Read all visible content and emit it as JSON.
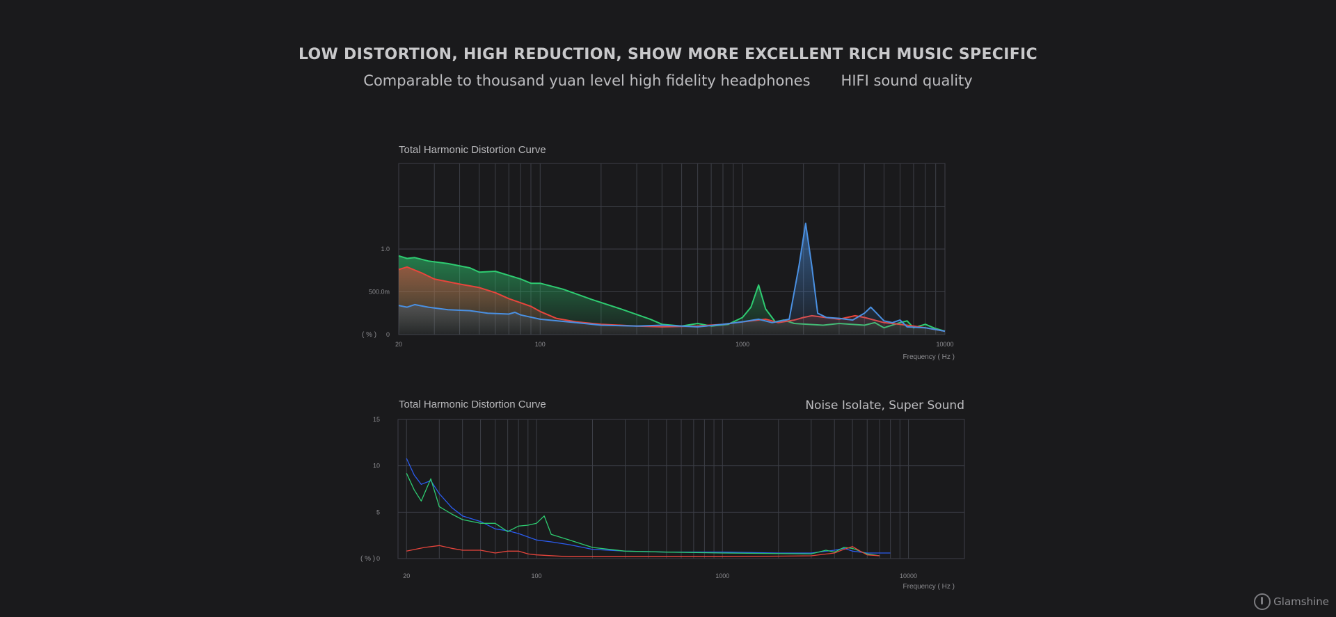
{
  "header": {
    "headline": "LOW DISTORTION, HIGH REDUCTION, SHOW MORE EXCELLENT RICH MUSIC SPECIFIC",
    "subline_left": "Comparable to thousand yuan level high fidelity headphones",
    "subline_right": "HIFI sound quality"
  },
  "logo": {
    "brand": "Glamshine",
    "icon": "headphone-note-icon"
  },
  "colors": {
    "green": "#2ecc71",
    "red": "#e8453c",
    "blue": "#4a90e2",
    "blue2": "#2b5cf0",
    "grid": "#3d3f47"
  },
  "chart_data": [
    {
      "type": "area",
      "title": "Total Harmonic Distortion Curve",
      "xlabel": "Frequency ( Hz )",
      "ylabel": "( % )",
      "xscale": "log",
      "xlim": [
        20,
        10000
      ],
      "ylim": [
        0,
        2.0
      ],
      "x_tick_labels": [
        "20",
        "100",
        "1000",
        "10000"
      ],
      "x_tick_values": [
        20,
        100,
        1000,
        10000
      ],
      "y_tick_labels": [
        "0",
        "500.0m",
        "1.0"
      ],
      "y_tick_values": [
        0,
        0.5,
        1.0
      ],
      "grid": true,
      "legend": "none",
      "series": [
        {
          "color": "green",
          "points": [
            [
              20,
              0.92
            ],
            [
              22,
              0.89
            ],
            [
              24,
              0.9
            ],
            [
              28,
              0.86
            ],
            [
              35,
              0.83
            ],
            [
              45,
              0.78
            ],
            [
              50,
              0.73
            ],
            [
              60,
              0.74
            ],
            [
              80,
              0.65
            ],
            [
              90,
              0.6
            ],
            [
              100,
              0.6
            ],
            [
              130,
              0.53
            ],
            [
              180,
              0.41
            ],
            [
              250,
              0.3
            ],
            [
              350,
              0.18
            ],
            [
              400,
              0.12
            ],
            [
              500,
              0.1
            ],
            [
              600,
              0.13
            ],
            [
              700,
              0.1
            ],
            [
              850,
              0.12
            ],
            [
              1000,
              0.2
            ],
            [
              1100,
              0.32
            ],
            [
              1200,
              0.58
            ],
            [
              1300,
              0.3
            ],
            [
              1450,
              0.15
            ],
            [
              1600,
              0.17
            ],
            [
              1800,
              0.13
            ],
            [
              2500,
              0.11
            ],
            [
              3000,
              0.13
            ],
            [
              4000,
              0.11
            ],
            [
              4500,
              0.14
            ],
            [
              5000,
              0.08
            ],
            [
              6000,
              0.14
            ],
            [
              6500,
              0.16
            ],
            [
              7000,
              0.08
            ],
            [
              8000,
              0.12
            ],
            [
              9000,
              0.07
            ],
            [
              10000,
              0.04
            ]
          ]
        },
        {
          "color": "red",
          "points": [
            [
              20,
              0.76
            ],
            [
              22,
              0.79
            ],
            [
              26,
              0.72
            ],
            [
              30,
              0.65
            ],
            [
              40,
              0.59
            ],
            [
              50,
              0.55
            ],
            [
              60,
              0.49
            ],
            [
              70,
              0.42
            ],
            [
              90,
              0.33
            ],
            [
              100,
              0.27
            ],
            [
              120,
              0.19
            ],
            [
              150,
              0.15
            ],
            [
              200,
              0.12
            ],
            [
              300,
              0.1
            ],
            [
              400,
              0.09
            ],
            [
              600,
              0.1
            ],
            [
              800,
              0.12
            ],
            [
              1000,
              0.15
            ],
            [
              1300,
              0.18
            ],
            [
              1500,
              0.14
            ],
            [
              1800,
              0.17
            ],
            [
              2000,
              0.2
            ],
            [
              2200,
              0.22
            ],
            [
              3000,
              0.18
            ],
            [
              3600,
              0.22
            ],
            [
              4000,
              0.2
            ],
            [
              5000,
              0.14
            ],
            [
              6000,
              0.12
            ],
            [
              7000,
              0.1
            ],
            [
              8000,
              0.08
            ],
            [
              10000,
              0.04
            ]
          ]
        },
        {
          "color": "blue",
          "points": [
            [
              20,
              0.34
            ],
            [
              22,
              0.32
            ],
            [
              24,
              0.35
            ],
            [
              28,
              0.32
            ],
            [
              35,
              0.29
            ],
            [
              45,
              0.28
            ],
            [
              55,
              0.25
            ],
            [
              70,
              0.24
            ],
            [
              75,
              0.26
            ],
            [
              80,
              0.23
            ],
            [
              100,
              0.18
            ],
            [
              150,
              0.14
            ],
            [
              200,
              0.11
            ],
            [
              300,
              0.1
            ],
            [
              400,
              0.11
            ],
            [
              500,
              0.1
            ],
            [
              600,
              0.09
            ],
            [
              800,
              0.12
            ],
            [
              1000,
              0.15
            ],
            [
              1200,
              0.18
            ],
            [
              1400,
              0.14
            ],
            [
              1700,
              0.18
            ],
            [
              1900,
              0.8
            ],
            [
              2050,
              1.3
            ],
            [
              2200,
              0.8
            ],
            [
              2350,
              0.25
            ],
            [
              2600,
              0.2
            ],
            [
              3000,
              0.19
            ],
            [
              3500,
              0.17
            ],
            [
              4000,
              0.25
            ],
            [
              4300,
              0.32
            ],
            [
              4600,
              0.25
            ],
            [
              5000,
              0.16
            ],
            [
              5500,
              0.14
            ],
            [
              6000,
              0.17
            ],
            [
              6500,
              0.09
            ],
            [
              8000,
              0.08
            ],
            [
              10000,
              0.04
            ]
          ]
        }
      ]
    },
    {
      "type": "line",
      "title": "Total Harmonic Distortion Curve",
      "annotation": "Noise Isolate, Super Sound",
      "xlabel": "Frequency ( Hz )",
      "ylabel": "( % )",
      "xscale": "log",
      "xlim": [
        18,
        20000
      ],
      "ylim": [
        0,
        15
      ],
      "x_tick_labels": [
        "20",
        "100",
        "1000",
        "10000"
      ],
      "x_tick_values": [
        20,
        100,
        1000,
        10000
      ],
      "y_tick_labels": [
        "0",
        "5",
        "10",
        "15"
      ],
      "y_tick_values": [
        0,
        5,
        10,
        15
      ],
      "grid": true,
      "legend": "none",
      "series": [
        {
          "color": "blue2",
          "points": [
            [
              20,
              10.8
            ],
            [
              22,
              9.0
            ],
            [
              24,
              8.0
            ],
            [
              27,
              8.4
            ],
            [
              30,
              7.0
            ],
            [
              35,
              5.5
            ],
            [
              40,
              4.6
            ],
            [
              50,
              4.0
            ],
            [
              60,
              3.2
            ],
            [
              70,
              3.0
            ],
            [
              80,
              2.7
            ],
            [
              100,
              2.0
            ],
            [
              120,
              1.8
            ],
            [
              150,
              1.5
            ],
            [
              200,
              1.0
            ],
            [
              300,
              0.8
            ],
            [
              500,
              0.7
            ],
            [
              1000,
              0.7
            ],
            [
              2000,
              0.6
            ],
            [
              3000,
              0.6
            ],
            [
              4000,
              0.9
            ],
            [
              4500,
              1.1
            ],
            [
              5000,
              0.8
            ],
            [
              6000,
              0.6
            ],
            [
              8000,
              0.6
            ]
          ]
        },
        {
          "color": "green",
          "points": [
            [
              20,
              9.2
            ],
            [
              22,
              7.4
            ],
            [
              24,
              6.2
            ],
            [
              27,
              8.6
            ],
            [
              30,
              5.6
            ],
            [
              35,
              4.8
            ],
            [
              40,
              4.2
            ],
            [
              50,
              3.8
            ],
            [
              60,
              3.8
            ],
            [
              70,
              2.9
            ],
            [
              80,
              3.5
            ],
            [
              90,
              3.6
            ],
            [
              100,
              3.8
            ],
            [
              110,
              4.6
            ],
            [
              120,
              2.6
            ],
            [
              150,
              2.0
            ],
            [
              200,
              1.2
            ],
            [
              300,
              0.8
            ],
            [
              500,
              0.7
            ],
            [
              1000,
              0.6
            ],
            [
              3000,
              0.5
            ],
            [
              3600,
              0.9
            ],
            [
              4000,
              0.7
            ],
            [
              4500,
              1.2
            ],
            [
              5000,
              1.1
            ],
            [
              6000,
              0.5
            ],
            [
              7000,
              0.3
            ]
          ]
        },
        {
          "color": "red",
          "points": [
            [
              20,
              0.8
            ],
            [
              25,
              1.2
            ],
            [
              30,
              1.4
            ],
            [
              35,
              1.1
            ],
            [
              40,
              0.9
            ],
            [
              50,
              0.9
            ],
            [
              60,
              0.6
            ],
            [
              70,
              0.8
            ],
            [
              80,
              0.8
            ],
            [
              90,
              0.5
            ],
            [
              100,
              0.4
            ],
            [
              150,
              0.2
            ],
            [
              200,
              0.2
            ],
            [
              500,
              0.2
            ],
            [
              1000,
              0.2
            ],
            [
              3000,
              0.3
            ],
            [
              4000,
              0.6
            ],
            [
              4500,
              1.0
            ],
            [
              5000,
              1.3
            ],
            [
              5500,
              0.8
            ],
            [
              6000,
              0.4
            ],
            [
              7000,
              0.3
            ]
          ]
        }
      ]
    }
  ]
}
